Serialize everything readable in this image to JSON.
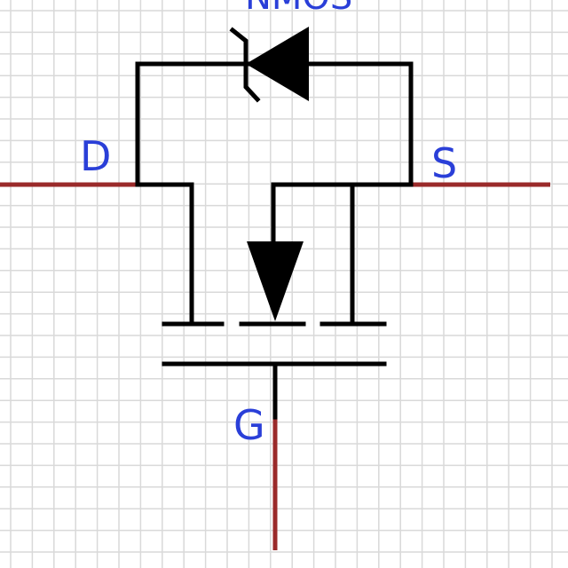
{
  "component": {
    "name": "NMOS",
    "pins": {
      "drain": "D",
      "source": "S",
      "gate": "G"
    }
  },
  "colors": {
    "grid": "#d9d9d9",
    "wire": "#000000",
    "pin_wire": "#9a2a2a",
    "label": "#2a3fd8",
    "background": "#ffffff"
  }
}
